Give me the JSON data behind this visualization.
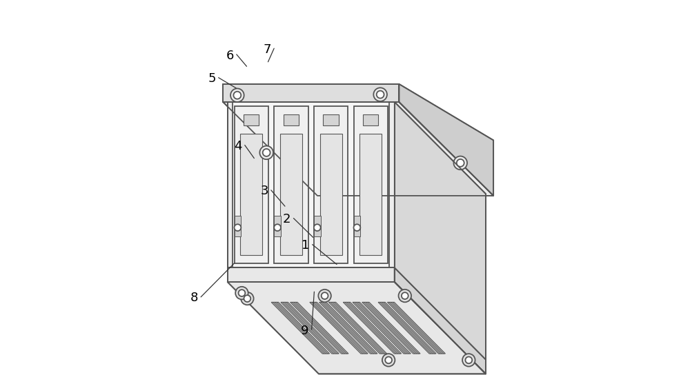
{
  "bg_color": "#ffffff",
  "lc": "#555555",
  "lw": 1.3,
  "lw_thin": 0.8,
  "fc_front": "#f5f5f5",
  "fc_top": "#e8e8e8",
  "fc_right": "#d8d8d8",
  "fc_base_top": "#ebebeb",
  "fc_base_front": "#dedede",
  "fc_base_right": "#cecece",
  "fc_slot_outer": "#f0f0f0",
  "fc_slot_inner": "#e4e4e4",
  "fc_tab": "#d4d4d4",
  "fc_latch": "#d0d0d0",
  "fc_vent": "#c8c8c8",
  "fc_stud": "#e0e0e0",
  "annotations": {
    "1": {
      "lp": [
        0.395,
        0.345
      ],
      "tp": [
        0.478,
        0.295
      ]
    },
    "2": {
      "lp": [
        0.345,
        0.415
      ],
      "tp": [
        0.415,
        0.367
      ]
    },
    "3": {
      "lp": [
        0.285,
        0.49
      ],
      "tp": [
        0.34,
        0.45
      ]
    },
    "4": {
      "lp": [
        0.215,
        0.61
      ],
      "tp": [
        0.258,
        0.578
      ]
    },
    "5": {
      "lp": [
        0.145,
        0.79
      ],
      "tp": [
        0.21,
        0.765
      ]
    },
    "6": {
      "lp": [
        0.193,
        0.852
      ],
      "tp": [
        0.238,
        0.823
      ]
    },
    "7": {
      "lp": [
        0.293,
        0.868
      ],
      "tp": [
        0.295,
        0.835
      ]
    },
    "8": {
      "lp": [
        0.098,
        0.205
      ],
      "tp": [
        0.205,
        0.298
      ]
    },
    "9": {
      "lp": [
        0.393,
        0.118
      ],
      "tp": [
        0.418,
        0.222
      ]
    }
  }
}
